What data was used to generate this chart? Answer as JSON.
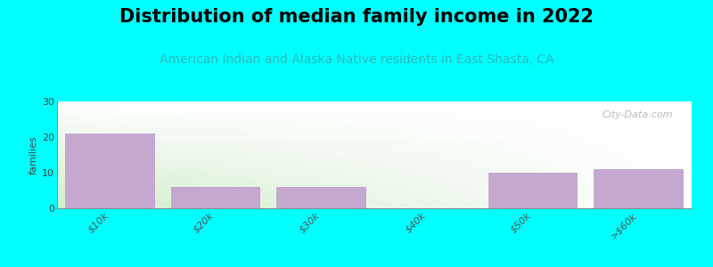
{
  "title": "Distribution of median family income in 2022",
  "subtitle": "American Indian and Alaska Native residents in East Shasta, CA",
  "categories": [
    "$10k",
    "$20k",
    "$30k",
    "$40k",
    "$50k",
    ">$60k"
  ],
  "values": [
    21,
    6,
    6,
    0,
    10,
    11
  ],
  "bar_color": "#C4A8D0",
  "background_color": "#00FFFF",
  "plot_bg_topleft": "#E8F5E0",
  "plot_bg_topright": "#FFFFFF",
  "plot_bg_bottomleft": "#C8ECC0",
  "plot_bg_bottomright": "#F0F8F0",
  "ylim": [
    0,
    30
  ],
  "yticks": [
    0,
    10,
    20,
    30
  ],
  "ylabel": "families",
  "title_fontsize": 15,
  "subtitle_fontsize": 10,
  "subtitle_color": "#2ABCBC",
  "watermark": "City-Data.com"
}
